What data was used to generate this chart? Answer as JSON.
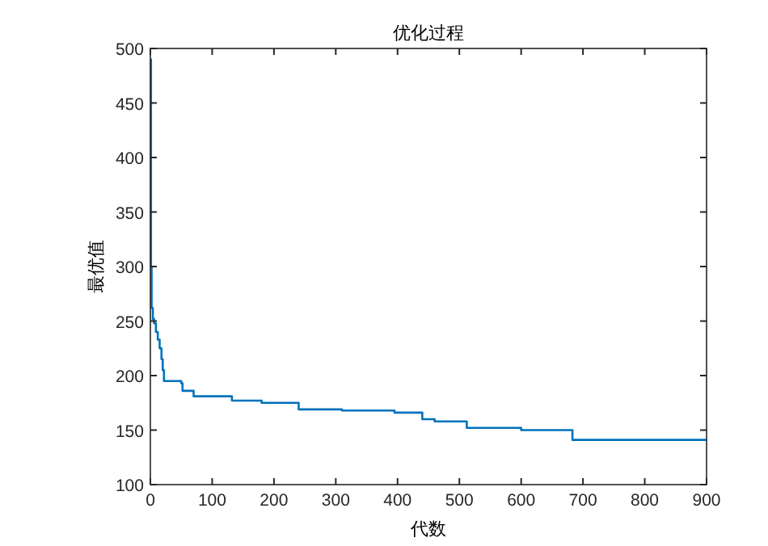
{
  "chart_data": {
    "type": "step",
    "title": "优化过程",
    "xlabel": "代数",
    "ylabel": "最优值",
    "x": [
      0,
      1,
      2,
      4,
      6,
      9,
      12,
      15,
      18,
      20,
      22,
      50,
      52,
      70,
      132,
      180,
      240,
      310,
      395,
      440,
      460,
      512,
      600,
      683,
      900
    ],
    "values": [
      490,
      300,
      262,
      252,
      248,
      240,
      233,
      225,
      215,
      205,
      195,
      193,
      186,
      181,
      177,
      175,
      169,
      168,
      166,
      160,
      158,
      152,
      150,
      141,
      141
    ],
    "color": "#0072bd",
    "xlim": [
      0,
      900
    ],
    "ylim": [
      100,
      500
    ],
    "xticks": [
      0,
      100,
      200,
      300,
      400,
      500,
      600,
      700,
      800,
      900
    ],
    "yticks": [
      100,
      150,
      200,
      250,
      300,
      350,
      400,
      450,
      500
    ],
    "grid": false
  }
}
